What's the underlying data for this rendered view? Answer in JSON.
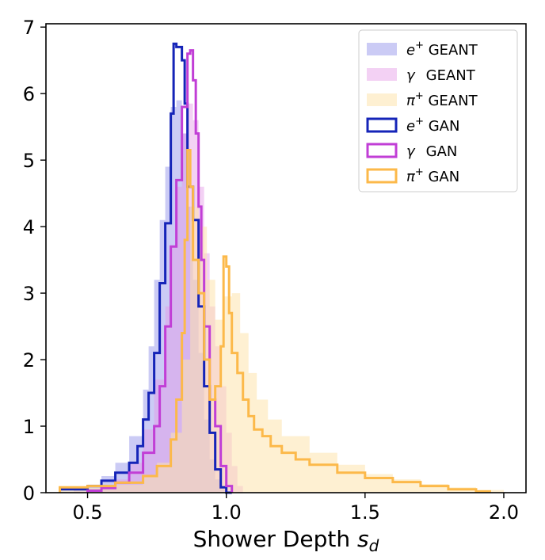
{
  "chart_data": {
    "type": "histogram",
    "xlabel": "Shower Depth",
    "xlabel_sub": "d",
    "xlim": [
      0.35,
      2.08
    ],
    "ylim": [
      0,
      7.05
    ],
    "xticks": [
      0.5,
      1.0,
      1.5,
      2.0
    ],
    "xtick_labels": [
      "0.5",
      "1.0",
      "1.5",
      "2.0"
    ],
    "yticks": [
      0,
      1,
      2,
      3,
      4,
      5,
      6,
      7
    ],
    "ytick_labels": [
      "0",
      "1",
      "2",
      "3",
      "4",
      "5",
      "6",
      "7"
    ],
    "grid": false,
    "legend_position": "top-right",
    "legend": [
      {
        "particle": "e",
        "sup": "+",
        "label": "GEANT",
        "style": "filled",
        "color": "#8b8be8",
        "opacity": 0.45
      },
      {
        "particle": "γ",
        "sup": "",
        "label": "GEANT",
        "style": "filled",
        "color": "#e49ae6",
        "opacity": 0.45
      },
      {
        "particle": "π",
        "sup": "+",
        "label": "GEANT",
        "style": "filled",
        "color": "#fde3ad",
        "opacity": 0.55
      },
      {
        "particle": "e",
        "sup": "+",
        "label": "GAN",
        "style": "step",
        "color": "#1524b8"
      },
      {
        "particle": "γ",
        "sup": "",
        "label": "GAN",
        "style": "step",
        "color": "#c13ed6"
      },
      {
        "particle": "π",
        "sup": "+",
        "label": "GAN",
        "style": "step",
        "color": "#fcb94a"
      }
    ],
    "series": [
      {
        "particle": "e+",
        "source": "GEANT",
        "style": "filled",
        "color": "#8b8be8",
        "x": [
          0.4,
          0.45,
          0.5,
          0.55,
          0.6,
          0.65,
          0.7,
          0.72,
          0.74,
          0.76,
          0.78,
          0.8,
          0.82,
          0.84,
          0.86,
          0.88,
          0.9,
          0.92,
          0.94,
          0.96,
          0.98,
          1.0,
          1.02
        ],
        "y": [
          0.02,
          0.06,
          0.12,
          0.25,
          0.45,
          0.85,
          1.55,
          2.2,
          3.2,
          4.1,
          4.9,
          5.8,
          5.9,
          5.4,
          4.3,
          3.2,
          2.1,
          1.1,
          0.5,
          0.2,
          0.05,
          0.01,
          0.0
        ]
      },
      {
        "particle": "γ",
        "source": "GEANT",
        "style": "filled",
        "color": "#e49ae6",
        "x": [
          0.45,
          0.5,
          0.55,
          0.6,
          0.65,
          0.7,
          0.74,
          0.78,
          0.8,
          0.82,
          0.84,
          0.86,
          0.88,
          0.9,
          0.92,
          0.94,
          0.96,
          0.98,
          1.0,
          1.02,
          1.04,
          1.06
        ],
        "y": [
          0.02,
          0.05,
          0.1,
          0.2,
          0.45,
          0.95,
          1.7,
          2.8,
          3.7,
          4.6,
          5.4,
          5.85,
          5.6,
          4.6,
          3.6,
          2.8,
          2.2,
          1.6,
          0.9,
          0.4,
          0.1,
          0.0
        ]
      },
      {
        "particle": "π+",
        "source": "GEANT",
        "style": "filled",
        "color": "#fde3ad",
        "x": [
          0.4,
          0.5,
          0.6,
          0.7,
          0.75,
          0.8,
          0.84,
          0.87,
          0.9,
          0.93,
          0.96,
          0.99,
          1.02,
          1.05,
          1.08,
          1.11,
          1.15,
          1.2,
          1.3,
          1.4,
          1.5,
          1.6,
          1.7,
          1.8,
          1.9,
          2.0
        ],
        "y": [
          0.05,
          0.08,
          0.12,
          0.25,
          0.45,
          0.9,
          2.0,
          4.3,
          4.0,
          3.2,
          2.6,
          2.95,
          3.0,
          2.4,
          1.8,
          1.4,
          1.1,
          0.85,
          0.6,
          0.42,
          0.28,
          0.2,
          0.13,
          0.08,
          0.04,
          0.0
        ]
      },
      {
        "particle": "e+",
        "source": "GAN",
        "style": "step",
        "color": "#1524b8",
        "x": [
          0.4,
          0.5,
          0.55,
          0.6,
          0.65,
          0.68,
          0.7,
          0.72,
          0.74,
          0.76,
          0.78,
          0.8,
          0.81,
          0.82,
          0.84,
          0.85,
          0.86,
          0.88,
          0.9,
          0.92,
          0.94,
          0.96,
          0.98,
          1.0,
          1.02
        ],
        "y": [
          0.05,
          0.1,
          0.18,
          0.3,
          0.45,
          0.7,
          1.1,
          1.5,
          2.1,
          3.15,
          4.05,
          5.7,
          6.75,
          6.7,
          6.5,
          5.85,
          4.6,
          4.1,
          2.8,
          1.6,
          0.9,
          0.35,
          0.08,
          0.0,
          0.0
        ]
      },
      {
        "particle": "γ",
        "source": "GAN",
        "style": "step",
        "color": "#c13ed6",
        "x": [
          0.5,
          0.55,
          0.6,
          0.65,
          0.7,
          0.74,
          0.76,
          0.78,
          0.8,
          0.82,
          0.84,
          0.86,
          0.87,
          0.88,
          0.89,
          0.9,
          0.91,
          0.92,
          0.94,
          0.96,
          0.98,
          1.0,
          1.02
        ],
        "y": [
          0.03,
          0.07,
          0.15,
          0.3,
          0.6,
          1.0,
          1.6,
          2.5,
          3.7,
          4.7,
          5.8,
          6.6,
          6.65,
          6.2,
          5.4,
          4.3,
          3.5,
          2.5,
          1.4,
          1.0,
          0.4,
          0.1,
          0.0
        ]
      },
      {
        "particle": "π+",
        "source": "GAN",
        "style": "step",
        "color": "#fcb94a",
        "x": [
          0.4,
          0.5,
          0.6,
          0.7,
          0.75,
          0.8,
          0.82,
          0.84,
          0.85,
          0.86,
          0.87,
          0.88,
          0.9,
          0.92,
          0.94,
          0.96,
          0.98,
          0.99,
          1.0,
          1.01,
          1.02,
          1.04,
          1.06,
          1.08,
          1.1,
          1.13,
          1.16,
          1.2,
          1.25,
          1.3,
          1.4,
          1.5,
          1.6,
          1.7,
          1.8,
          1.9,
          1.95
        ],
        "y": [
          0.08,
          0.1,
          0.15,
          0.25,
          0.4,
          0.8,
          1.4,
          2.4,
          3.8,
          5.15,
          4.6,
          3.5,
          3.0,
          2.0,
          1.4,
          1.6,
          2.2,
          3.55,
          3.4,
          2.7,
          2.1,
          1.8,
          1.4,
          1.15,
          0.95,
          0.85,
          0.7,
          0.6,
          0.5,
          0.42,
          0.3,
          0.22,
          0.16,
          0.1,
          0.05,
          0.02,
          0.0
        ]
      }
    ]
  }
}
